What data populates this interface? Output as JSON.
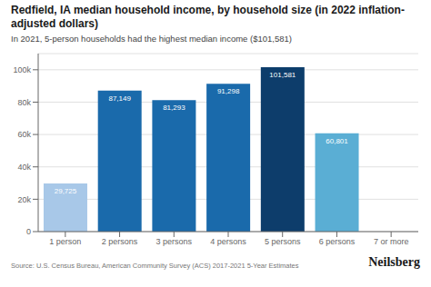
{
  "chart_data": {
    "type": "bar",
    "title": "Redfield, IA median household income, by household size (in 2022 inflation-adjusted dollars)",
    "subtitle": "In 2021, 5-person households had the highest median income ($101,581)",
    "annotations": [
      "Source: U.S. Census Bureau, American Community Survey (ACS) 2017-2021 5-Year Estimates",
      "Neilsberg"
    ],
    "categories": [
      "1 person",
      "2 persons",
      "3 persons",
      "4 persons",
      "5 persons",
      "6 persons",
      "7 or more"
    ],
    "values": [
      29725,
      87149,
      81293,
      91298,
      101581,
      60801,
      0
    ],
    "value_labels": [
      "29,725",
      "87,149",
      "81,293",
      "91,298",
      "101,581",
      "60,801",
      null
    ],
    "data_labels": true,
    "colors": [
      "#a8c8e8",
      "#1a6aab",
      "#1a6aab",
      "#1a6aab",
      "#0d3d6b",
      "#5aaed4",
      "#d0d0d0"
    ],
    "ylim": [
      0,
      110000
    ],
    "yticks": [
      0,
      {
        "value": 20000,
        "label": "20k"
      },
      {
        "value": 40000,
        "label": "40k"
      },
      {
        "value": 60000,
        "label": "60k"
      },
      {
        "value": 80000,
        "label": "80k"
      },
      {
        "value": 100000,
        "label": "100k"
      }
    ],
    "grid": true
  }
}
